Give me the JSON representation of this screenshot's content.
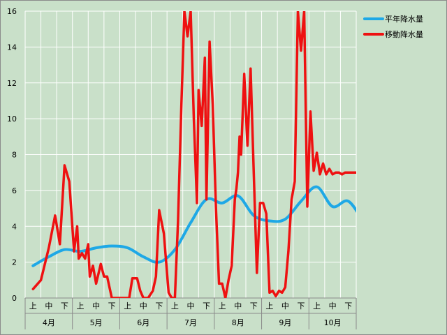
{
  "chart_data": {
    "type": "line",
    "ylim": [
      0,
      16
    ],
    "yticks": [
      0,
      2,
      4,
      6,
      8,
      10,
      12,
      14,
      16
    ],
    "grid": true,
    "legend_position": "top-right",
    "colors": {
      "plot_bg": "#c9e0c9",
      "grid": "#ffffff",
      "normal": "#1ea8e6",
      "moving": "#ee1111"
    },
    "months": [
      "4月",
      "5月",
      "6月",
      "7月",
      "8月",
      "9月",
      "10月"
    ],
    "periods": [
      "上",
      "中",
      "下"
    ],
    "series": [
      {
        "name": "平年降水量",
        "x": [
          0,
          1,
          2,
          3,
          4,
          5,
          6,
          7,
          8,
          9,
          10,
          11,
          12,
          13,
          14,
          15,
          16,
          17,
          18,
          19,
          20,
          21
        ],
        "values": [
          1.8,
          2.3,
          2.7,
          2.6,
          2.8,
          2.9,
          2.8,
          2.3,
          2.0,
          2.7,
          4.2,
          5.5,
          5.3,
          5.7,
          4.6,
          4.3,
          4.4,
          5.4,
          6.2,
          5.1,
          5.4,
          4.2
        ]
      },
      {
        "name": "移動降水量",
        "x": [
          0,
          0.5,
          1,
          1.4,
          1.7,
          2,
          2.3,
          2.6,
          2.8,
          2.9,
          3.1,
          3.3,
          3.5,
          3.6,
          3.8,
          4,
          4.3,
          4.5,
          4.7,
          5,
          5.3,
          5.8,
          6.1,
          6.3,
          6.6,
          6.8,
          7,
          7.3,
          7.6,
          7.8,
          8,
          8.3,
          8.6,
          8.8,
          9,
          9.2,
          9.4,
          9.6,
          9.8,
          10,
          10.2,
          10.4,
          10.5,
          10.7,
          10.9,
          11,
          11.2,
          11.4,
          11.6,
          11.8,
          12,
          12.2,
          12.4,
          12.6,
          12.8,
          12.9,
          13,
          13.1,
          13.2,
          13.4,
          13.6,
          13.8,
          14,
          14.2,
          14.4,
          14.6,
          14.8,
          15,
          15.2,
          15.4,
          15.6,
          15.8,
          16,
          16.2,
          16.4,
          16.6,
          16.8,
          17,
          17.2,
          17.4,
          17.6,
          17.8,
          18,
          18.2,
          18.4,
          18.6,
          18.8,
          19,
          19.2,
          19.4,
          19.6,
          19.8,
          20,
          20.2,
          20.4,
          20.6,
          20.8,
          21
        ],
        "values": [
          0.5,
          1.0,
          2.8,
          4.6,
          3.0,
          7.4,
          6.5,
          2.6,
          4.0,
          2.2,
          2.5,
          2.2,
          3.0,
          1.2,
          1.8,
          0.8,
          1.9,
          1.2,
          1.2,
          0.0,
          0.0,
          0.0,
          0.0,
          1.1,
          1.1,
          0.4,
          0.0,
          0.0,
          0.4,
          1.2,
          4.9,
          3.6,
          0.3,
          0.0,
          0.0,
          4.3,
          10.5,
          16.0,
          14.6,
          16.0,
          10.0,
          5.3,
          11.6,
          9.6,
          13.4,
          5.5,
          14.3,
          10.8,
          5.1,
          0.8,
          0.8,
          0.0,
          1.0,
          1.8,
          5.5,
          6.1,
          7.0,
          9.0,
          8.0,
          12.5,
          8.5,
          12.8,
          7.0,
          1.4,
          5.3,
          5.3,
          4.7,
          0.3,
          0.4,
          0.1,
          0.4,
          0.3,
          0.6,
          2.6,
          5.5,
          6.5,
          16.0,
          13.8,
          16.0,
          5.1,
          10.4,
          7.1,
          8.1,
          6.9,
          7.5,
          6.9,
          7.2,
          6.9,
          7.0,
          7.0,
          6.9,
          7.0,
          7.0,
          7.0,
          7.0,
          7.0,
          7.0,
          6.9
        ]
      }
    ]
  }
}
